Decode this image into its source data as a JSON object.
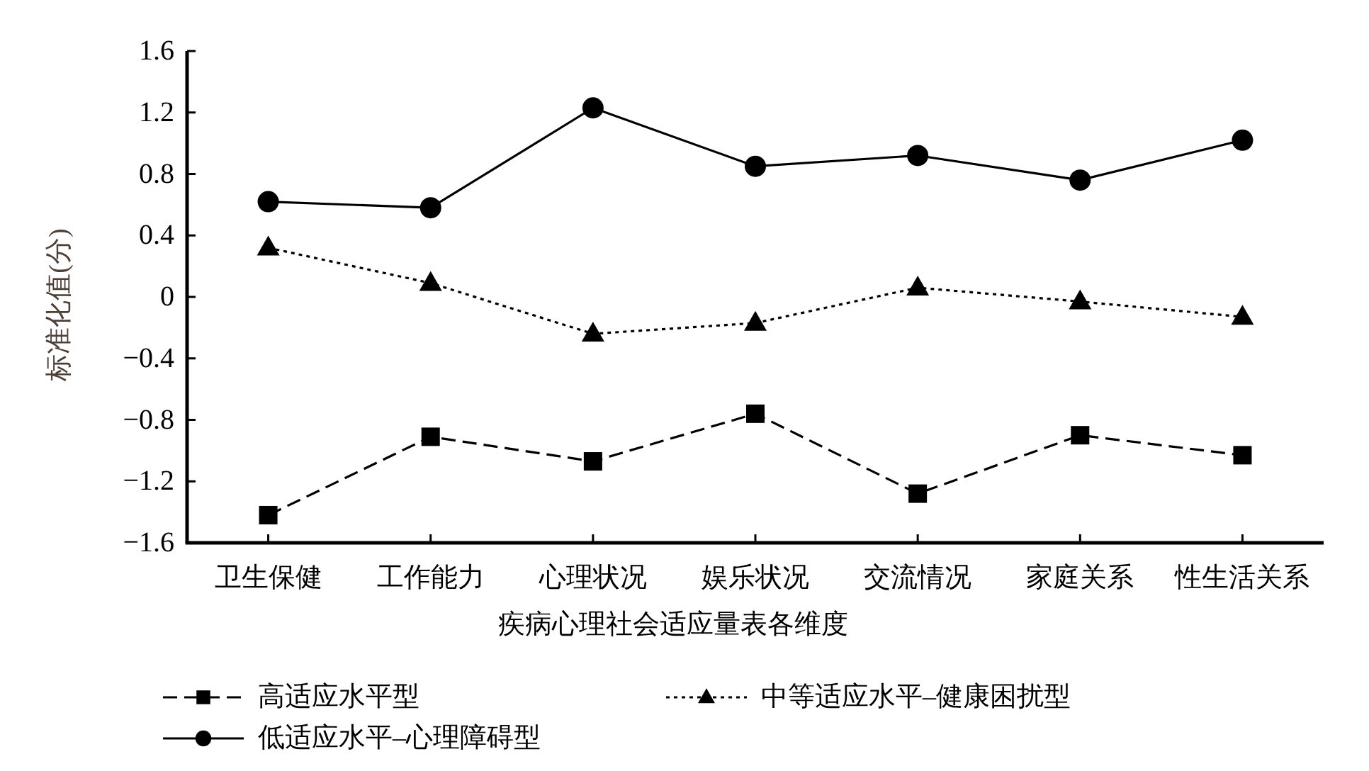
{
  "chart_data": {
    "type": "line",
    "xlabel": "疾病心理社会适应量表各维度",
    "ylabel": "标准化值(分)",
    "categories": [
      "卫生保健",
      "工作能力",
      "心理状况",
      "娱乐状况",
      "交流情况",
      "家庭关系",
      "性生活关系"
    ],
    "series": [
      {
        "name": "高适应水平型",
        "color": "#000000",
        "marker": "square",
        "line_style": "dashed",
        "values": [
          -1.42,
          -0.91,
          -1.07,
          -0.76,
          -1.28,
          -0.9,
          -1.03
        ]
      },
      {
        "name": "中等适应水平–健康困扰型",
        "color": "#000000",
        "marker": "triangle",
        "line_style": "dotted",
        "values": [
          0.32,
          0.09,
          -0.24,
          -0.17,
          0.06,
          -0.03,
          -0.13
        ]
      },
      {
        "name": "低适应水平–心理障碍型",
        "color": "#000000",
        "marker": "circle",
        "line_style": "solid",
        "values": [
          0.62,
          0.58,
          1.23,
          0.85,
          0.92,
          0.76,
          1.02
        ]
      }
    ],
    "ylim": [
      -1.6,
      1.6
    ],
    "yticks": [
      -1.6,
      -1.2,
      -0.8,
      -0.4,
      0,
      0.4,
      0.8,
      1.2,
      1.6
    ],
    "legend": "bottom"
  }
}
